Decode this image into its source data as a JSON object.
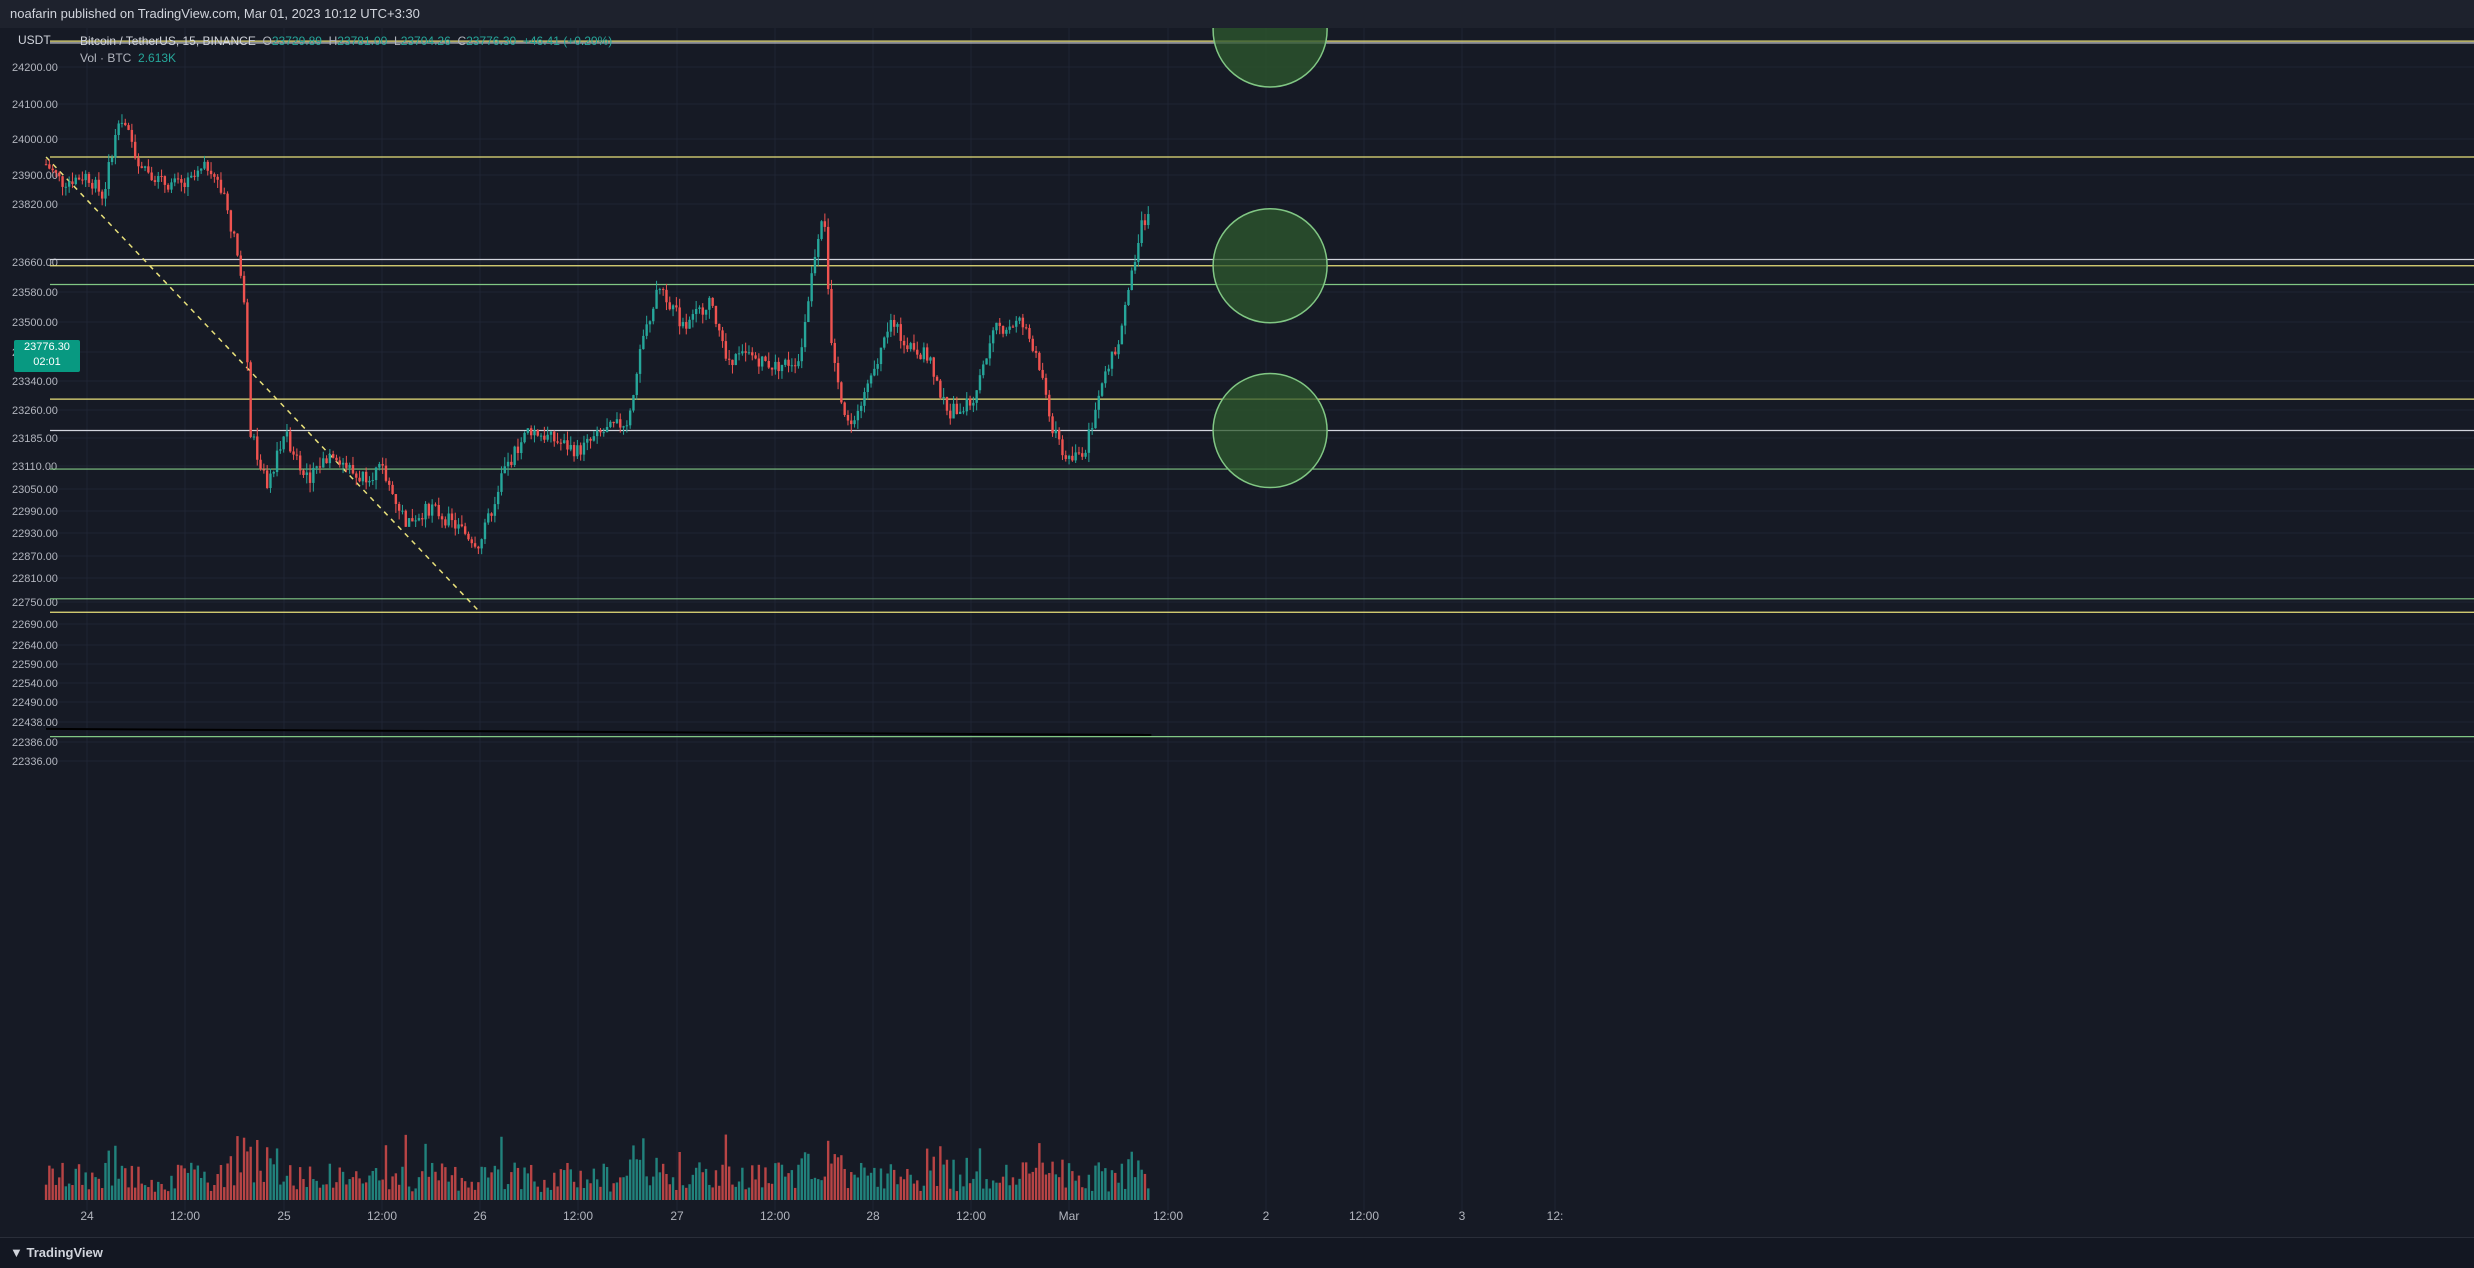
{
  "header": {
    "published": "noafarin published on TradingView.com, Mar 01, 2023 10:12 UTC+3:30"
  },
  "legend": {
    "symbol": "Bitcoin / TetherUS, 15, BINANCE",
    "o_label": "O",
    "o_value": "23729.89",
    "h_label": "H",
    "h_value": "23781.00",
    "l_label": "L",
    "l_value": "23704.26",
    "c_label": "C",
    "c_value": "23776.30",
    "change": "+46.41 (+0.20%)",
    "vol_label": "Vol · BTC",
    "vol_value": "2.613K"
  },
  "currency": "USDT",
  "price_tag": {
    "price": "23776.30",
    "countdown": "02:01"
  },
  "footer": {
    "brand": "TradingView"
  },
  "colors": {
    "background": "#161a25",
    "up": "#26a69a",
    "down": "#ef5350",
    "yellow_line": "#e8e07a",
    "green_line": "#81c784",
    "white_line": "#d1d4dc",
    "circle_fill": "#2e5a2e"
  },
  "chart_data": {
    "type": "candlestick",
    "title": "Bitcoin / TetherUS, 15, BINANCE",
    "y_ticks": [
      "24200.00",
      "24100.00",
      "24000.00",
      "23900.00",
      "23820.00",
      "23660.00",
      "23580.00",
      "23500.00",
      "23420.00",
      "23340.00",
      "23260.00",
      "23185.00",
      "23110.00",
      "23050.00",
      "22990.00",
      "22930.00",
      "22870.00",
      "22810.00",
      "22750.00",
      "22690.00",
      "22640.00",
      "22590.00",
      "22540.00",
      "22490.00",
      "22438.00",
      "22386.00",
      "22336.00"
    ],
    "x_ticks": [
      "24",
      "12:00",
      "25",
      "12:00",
      "26",
      "12:00",
      "27",
      "12:00",
      "28",
      "12:00",
      "Mar",
      "12:00",
      "2",
      "12:00",
      "3",
      "12:"
    ],
    "close_path": [
      {
        "x": "Feb 23 19:00",
        "y": 23930
      },
      {
        "x": "Feb 23 21:00",
        "y": 23880
      },
      {
        "x": "Feb 24 00:00",
        "y": 23900
      },
      {
        "x": "Feb 24 02:00",
        "y": 23840
      },
      {
        "x": "Feb 24 04:00",
        "y": 24080
      },
      {
        "x": "Feb 24 06:00",
        "y": 23950
      },
      {
        "x": "Feb 24 09:00",
        "y": 23880
      },
      {
        "x": "Feb 24 12:00",
        "y": 23870
      },
      {
        "x": "Feb 24 15:00",
        "y": 23930
      },
      {
        "x": "Feb 24 17:00",
        "y": 23820
      },
      {
        "x": "Feb 24 19:00",
        "y": 23620
      },
      {
        "x": "Feb 24 20:00",
        "y": 23200
      },
      {
        "x": "Feb 24 22:00",
        "y": 23050
      },
      {
        "x": "Feb 25 00:00",
        "y": 23200
      },
      {
        "x": "Feb 25 03:00",
        "y": 23080
      },
      {
        "x": "Feb 25 06:00",
        "y": 23150
      },
      {
        "x": "Feb 25 09:00",
        "y": 23080
      },
      {
        "x": "Feb 25 12:00",
        "y": 23100
      },
      {
        "x": "Feb 25 15:00",
        "y": 22960
      },
      {
        "x": "Feb 25 18:00",
        "y": 23000
      },
      {
        "x": "Feb 25 21:00",
        "y": 22950
      },
      {
        "x": "Feb 26 00:00",
        "y": 22900
      },
      {
        "x": "Feb 26 03:00",
        "y": 23100
      },
      {
        "x": "Feb 26 06:00",
        "y": 23210
      },
      {
        "x": "Feb 26 09:00",
        "y": 23180
      },
      {
        "x": "Feb 26 12:00",
        "y": 23150
      },
      {
        "x": "Feb 26 15:00",
        "y": 23200
      },
      {
        "x": "Feb 26 18:00",
        "y": 23230
      },
      {
        "x": "Feb 26 20:00",
        "y": 23460
      },
      {
        "x": "Feb 26 22:00",
        "y": 23600
      },
      {
        "x": "Feb 27 01:00",
        "y": 23480
      },
      {
        "x": "Feb 27 04:00",
        "y": 23560
      },
      {
        "x": "Feb 27 06:00",
        "y": 23400
      },
      {
        "x": "Feb 27 09:00",
        "y": 23410
      },
      {
        "x": "Feb 27 12:00",
        "y": 23380
      },
      {
        "x": "Feb 27 15:00",
        "y": 23400
      },
      {
        "x": "Feb 27 17:00",
        "y": 23700
      },
      {
        "x": "Feb 27 18:00",
        "y": 23820
      },
      {
        "x": "Feb 27 19:00",
        "y": 23400
      },
      {
        "x": "Feb 27 21:00",
        "y": 23220
      },
      {
        "x": "Feb 28 00:00",
        "y": 23350
      },
      {
        "x": "Feb 28 02:00",
        "y": 23500
      },
      {
        "x": "Feb 28 04:00",
        "y": 23450
      },
      {
        "x": "Feb 28 07:00",
        "y": 23400
      },
      {
        "x": "Feb 28 09:00",
        "y": 23250
      },
      {
        "x": "Feb 28 12:00",
        "y": 23280
      },
      {
        "x": "Feb 28 15:00",
        "y": 23480
      },
      {
        "x": "Feb 28 18:00",
        "y": 23500
      },
      {
        "x": "Feb 28 20:00",
        "y": 23420
      },
      {
        "x": "Feb 28 22:00",
        "y": 23200
      },
      {
        "x": "Mar 01 00:00",
        "y": 23120
      },
      {
        "x": "Mar 01 02:00",
        "y": 23160
      },
      {
        "x": "Mar 01 04:00",
        "y": 23330
      },
      {
        "x": "Mar 01 06:00",
        "y": 23450
      },
      {
        "x": "Mar 01 08:00",
        "y": 23660
      },
      {
        "x": "Mar 01 09:00",
        "y": 23780
      },
      {
        "x": "Mar 01 10:00",
        "y": 23776
      }
    ],
    "horizontal_levels": [
      {
        "price": 24270,
        "color": "yellow"
      },
      {
        "price": 24265,
        "color": "white"
      },
      {
        "price": 23950,
        "color": "yellow"
      },
      {
        "price": 23667,
        "color": "white"
      },
      {
        "price": 23650,
        "color": "yellow"
      },
      {
        "price": 23600,
        "color": "green"
      },
      {
        "price": 23290,
        "color": "yellow"
      },
      {
        "price": 23205,
        "color": "white"
      },
      {
        "price": 23102,
        "color": "green"
      },
      {
        "price": 22758,
        "color": "green"
      },
      {
        "price": 22722,
        "color": "yellow"
      },
      {
        "price": 22400,
        "color": "green"
      }
    ],
    "trendline": {
      "from": {
        "x": "Feb 23 19:00",
        "y": 23950
      },
      "to": {
        "x": "Feb 26 00:00",
        "y": 22722
      },
      "style": "dashed"
    },
    "circles": [
      {
        "x": "Mar 02 00:30",
        "y": 24300
      },
      {
        "x": "Mar 02 00:30",
        "y": 23650
      },
      {
        "x": "Mar 02 00:30",
        "y": 23205
      }
    ],
    "volume_avg": 22420
  }
}
